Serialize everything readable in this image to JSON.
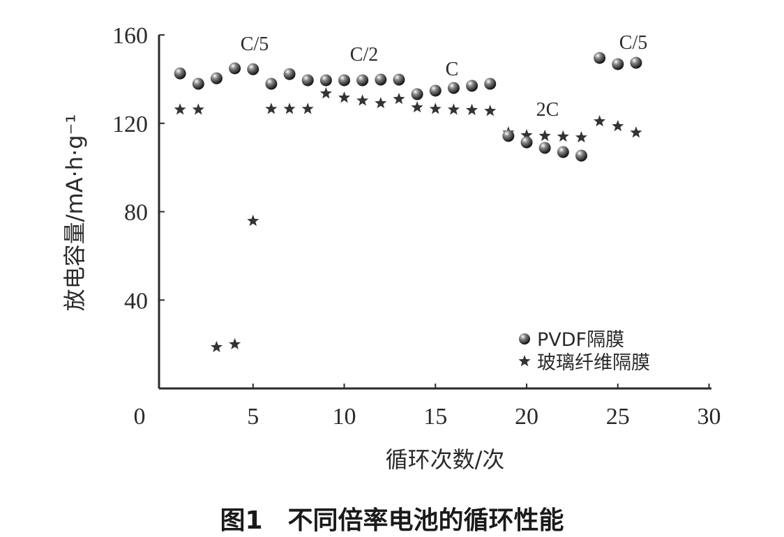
{
  "chart_data": {
    "type": "scatter",
    "caption": "图1　不同倍率电池的循环性能",
    "xlabel": "循环次数/次",
    "ylabel": "放电容量/mA·h·g⁻¹",
    "xlim": [
      0,
      30
    ],
    "ylim": [
      0,
      160
    ],
    "xticks": [
      "0",
      "5",
      "10",
      "15",
      "20",
      "25",
      "30"
    ],
    "yticks": [
      "40",
      "80",
      "120",
      "160"
    ],
    "grid": false,
    "legend_position": "bottom-right",
    "annotations": [
      "C/5",
      "C/2",
      "C",
      "2C",
      "C/5"
    ],
    "series": [
      {
        "name": "PVDF隔膜",
        "marker": "sphere",
        "x": [
          1,
          2,
          3,
          4,
          5,
          6,
          7,
          8,
          9,
          10,
          11,
          12,
          13,
          14,
          15,
          16,
          17,
          18,
          19,
          20,
          21,
          22,
          23,
          24,
          25,
          26
        ],
        "y": [
          142.6,
          137.9,
          140.4,
          144.9,
          144.5,
          137.9,
          142.3,
          139.5,
          139.5,
          139.5,
          139.5,
          139.8,
          139.8,
          133.2,
          134.8,
          136,
          137,
          137.9,
          114.3,
          111.4,
          108.9,
          107,
          105.4,
          149.6,
          146.8,
          147.4
        ]
      },
      {
        "name": "玻璃纤维隔膜",
        "marker": "star",
        "x": [
          1,
          2,
          3,
          4,
          5,
          6,
          7,
          8,
          9,
          10,
          11,
          12,
          13,
          14,
          15,
          16,
          17,
          18,
          19,
          20,
          21,
          22,
          23,
          24,
          25,
          26
        ],
        "y": [
          126.2,
          126.2,
          18.7,
          20,
          75.8,
          126.5,
          126.5,
          126.5,
          133.5,
          131.6,
          130.3,
          129.1,
          131,
          127.2,
          126.5,
          126.2,
          126,
          125.6,
          115.8,
          114.6,
          114.3,
          114,
          113.6,
          120.9,
          118.7,
          115.8
        ]
      }
    ]
  }
}
